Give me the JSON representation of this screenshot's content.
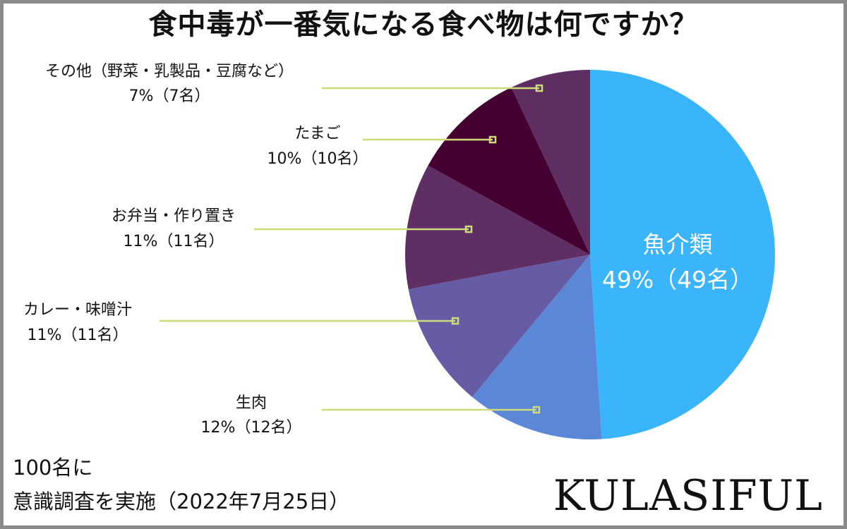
{
  "chart_data": {
    "type": "pie",
    "title": "食中毒が一番気になる食べ物は何ですか？",
    "start_angle_deg": 0,
    "direction": "clockwise",
    "slices": [
      {
        "name": "魚介類",
        "value": 49,
        "pct_label": "49%（49名）",
        "color": "#3AB4FB"
      },
      {
        "name": "生肉",
        "value": 12,
        "pct_label": "12%（12名）",
        "color": "#5B87D6"
      },
      {
        "name": "カレー・味噌汁",
        "value": 11,
        "pct_label": "11%（11名）",
        "color": "#665CA6"
      },
      {
        "name": "お弁当・作り置き",
        "value": 11,
        "pct_label": "11%（11名）",
        "color": "#5E2E64"
      },
      {
        "name": "たまご",
        "value": 10,
        "pct_label": "10%（10名）",
        "color": "#440030"
      },
      {
        "name": "その他（野菜・乳製品・豆腐など）",
        "value": 7,
        "pct_label": "7%（7名）",
        "color": "#5E2D61"
      }
    ],
    "leader_color": "#CCDA7A"
  },
  "footnote": {
    "line1": "100名に",
    "line2": "意識調査を実施（2022年7月25日）"
  },
  "brand": "KULASIFUL"
}
